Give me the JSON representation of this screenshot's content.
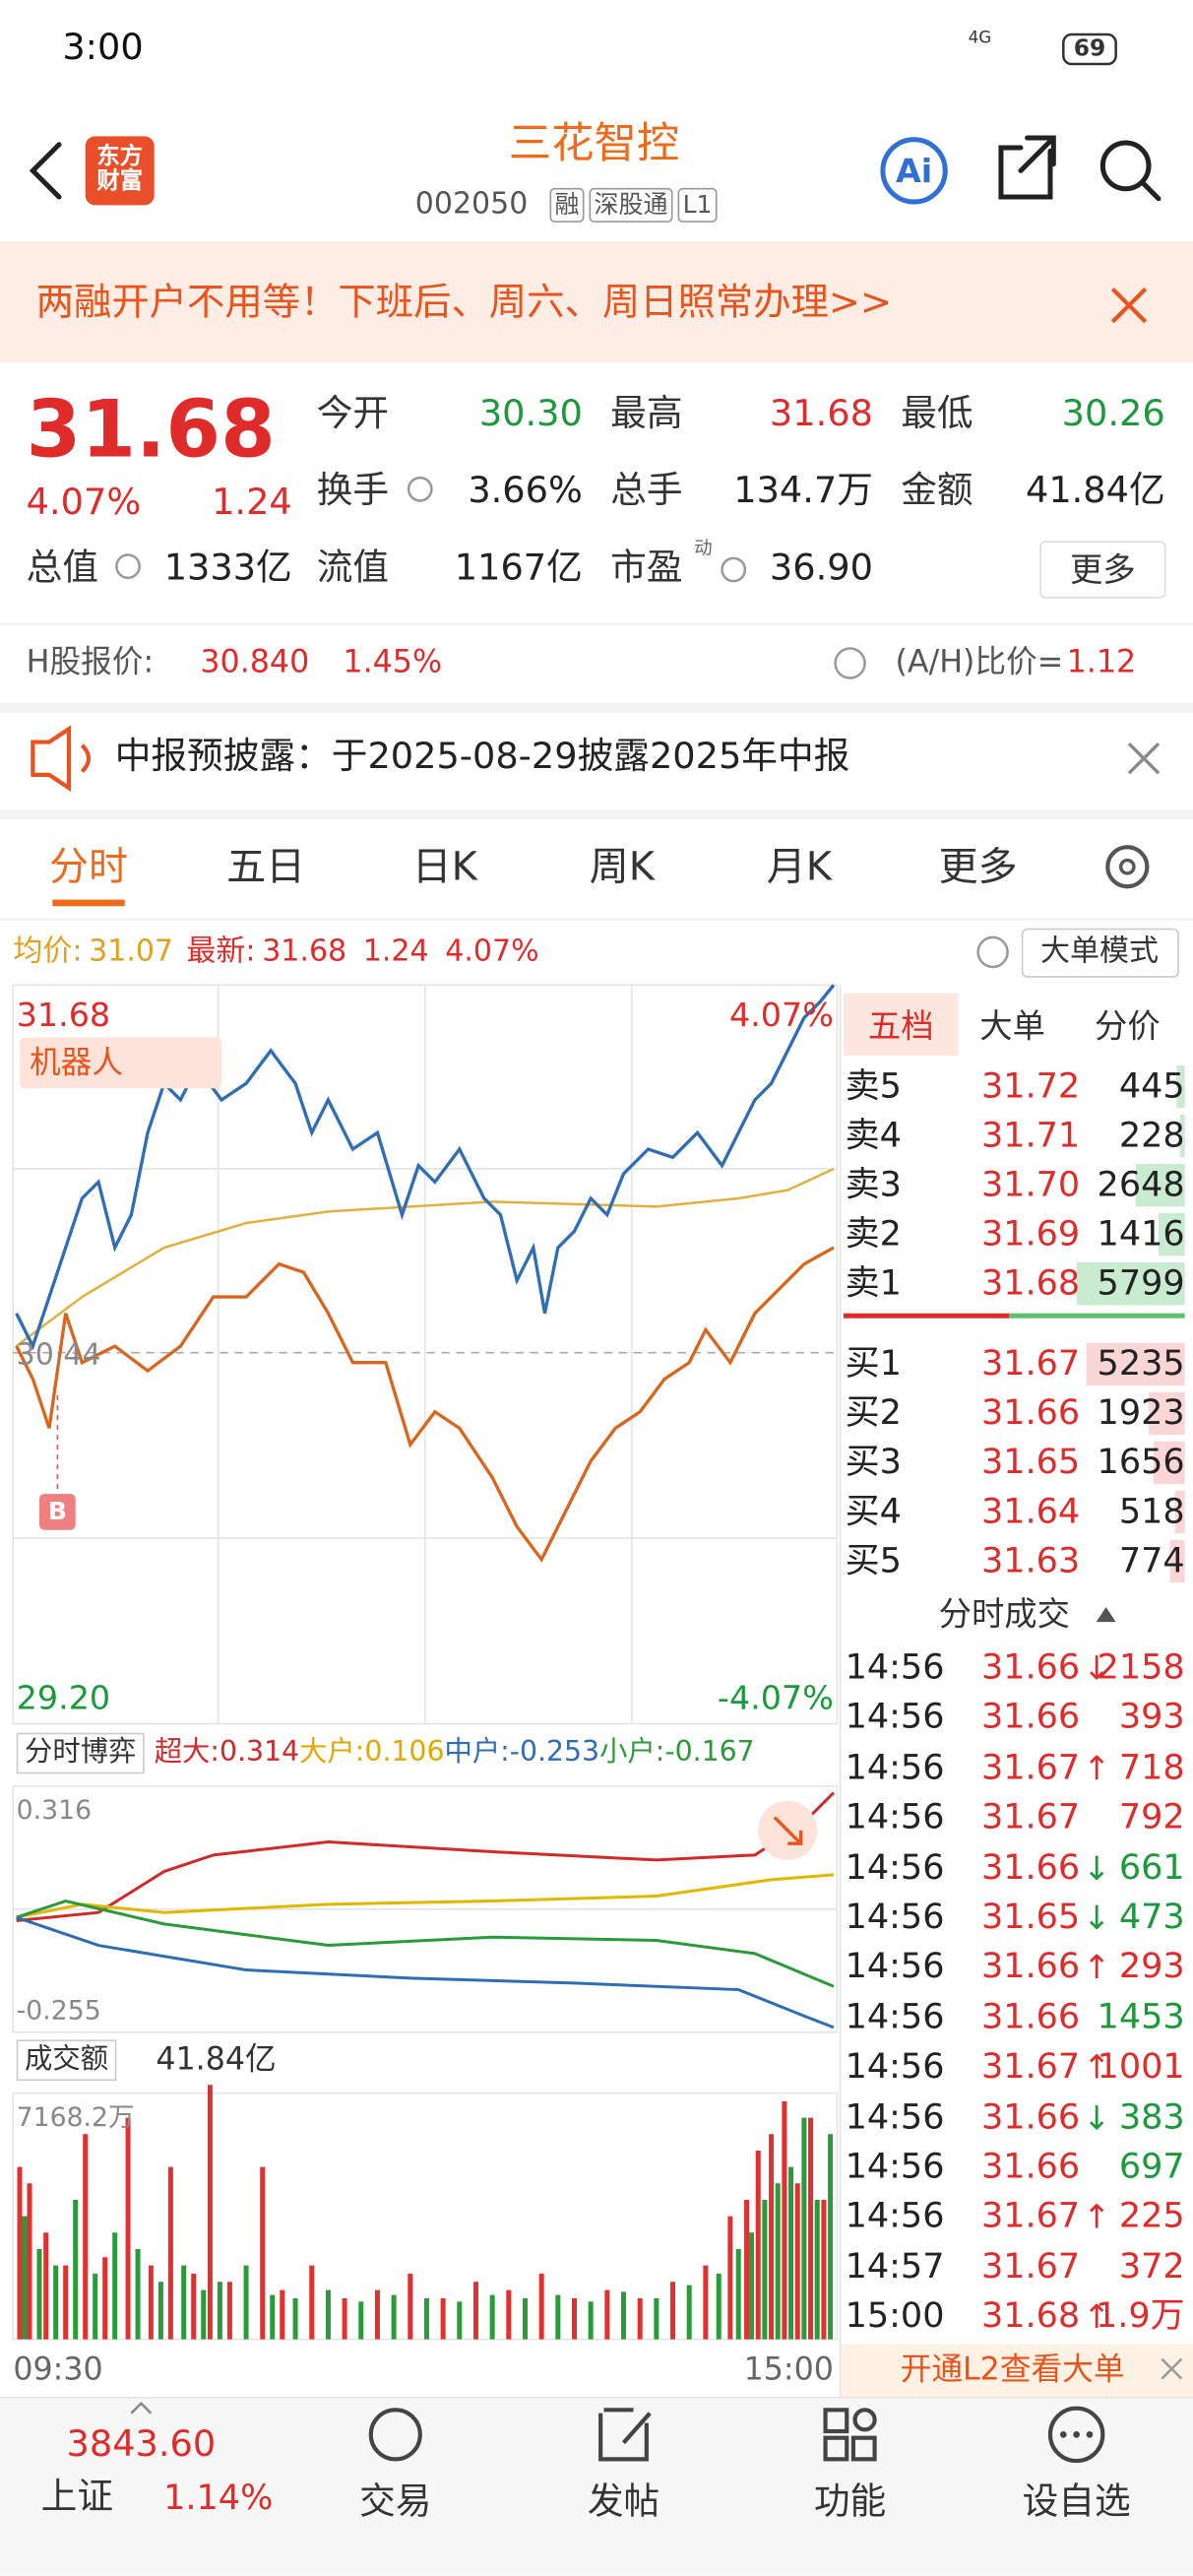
{
  "status": {
    "time": "3:00",
    "network": "4G",
    "battery": "69"
  },
  "header": {
    "logo": "东方财富",
    "title": "三花智控",
    "code": "002050",
    "tags": [
      "融",
      "深股通",
      "L1"
    ],
    "ai": "Ai"
  },
  "banner": {
    "text": "两融开户不用等！下班后、周六、周日照常办理>>"
  },
  "quote": {
    "price": "31.68",
    "pct": "4.07%",
    "change": "1.24",
    "stats": [
      {
        "label": "今开",
        "value": "30.30"
      },
      {
        "label": "最高",
        "value": "31.68"
      },
      {
        "label": "最低",
        "value": "30.26"
      },
      {
        "label": "换手",
        "value": "3.66%"
      },
      {
        "label": "总手",
        "value": "134.7万"
      },
      {
        "label": "金额",
        "value": "41.84亿"
      },
      {
        "label": "总值",
        "value": "1333亿"
      },
      {
        "label": "流值",
        "value": "1167亿"
      },
      {
        "label": "市盈",
        "value": "36.90"
      }
    ],
    "pe_note": "动",
    "more": "更多"
  },
  "hshare": {
    "label": "H股报价:",
    "price": "30.840",
    "pct": "1.45%",
    "ratio_label": "(A/H)比价=",
    "ratio": "1.12"
  },
  "notice": {
    "text": "中报预披露：于2025-08-29披露2025年中报"
  },
  "tabs": {
    "items": [
      "分时",
      "五日",
      "日K",
      "周K",
      "月K",
      "更多"
    ],
    "active": 0
  },
  "chart": {
    "avg_label": "均价:",
    "avg": "31.07",
    "latest_label": "最新:",
    "latest": "31.68",
    "change": "1.24",
    "pct": "4.07%",
    "mode": "大单模式",
    "high": "31.68",
    "high_pct": "4.07%",
    "low": "29.20",
    "low_pct": "-4.07%",
    "ref": "30.44",
    "robot": "机器人",
    "marker": "B"
  },
  "flow": {
    "selector": "分时博弈",
    "items": [
      {
        "label": "超大:",
        "value": "0.314",
        "color": "#d02a2a"
      },
      {
        "label": "大户:",
        "value": "0.106",
        "color": "#e0a800"
      },
      {
        "label": "中户:",
        "value": "-0.253",
        "color": "#2f6db5"
      },
      {
        "label": "小户:",
        "value": "-0.167",
        "color": "#2a9a3a"
      }
    ],
    "top": "0.316",
    "bottom": "-0.255"
  },
  "volume": {
    "selector": "成交额",
    "total": "41.84亿",
    "max": "7168.2万",
    "start": "09:30",
    "end": "15:00"
  },
  "book": {
    "tabs": [
      "五档",
      "大单",
      "分价"
    ],
    "asks": [
      {
        "label": "卖5",
        "price": "31.72",
        "vol": "445"
      },
      {
        "label": "卖4",
        "price": "31.71",
        "vol": "228"
      },
      {
        "label": "卖3",
        "price": "31.70",
        "vol": "2648"
      },
      {
        "label": "卖2",
        "price": "31.69",
        "vol": "1416"
      },
      {
        "label": "卖1",
        "price": "31.68",
        "vol": "5799"
      }
    ],
    "bids": [
      {
        "label": "买1",
        "price": "31.67",
        "vol": "5235"
      },
      {
        "label": "买2",
        "price": "31.66",
        "vol": "1923"
      },
      {
        "label": "买3",
        "price": "31.65",
        "vol": "1656"
      },
      {
        "label": "买4",
        "price": "31.64",
        "vol": "518"
      },
      {
        "label": "买5",
        "price": "31.63",
        "vol": "774"
      }
    ]
  },
  "trades": {
    "title": "分时成交",
    "rows": [
      {
        "time": "14:56",
        "price": "31.66",
        "arrow": "↓",
        "vol": "2158",
        "color": "#e02b2b"
      },
      {
        "time": "14:56",
        "price": "31.66",
        "vol": "393",
        "color": "#e02b2b"
      },
      {
        "time": "14:56",
        "price": "31.67",
        "arrow": "↑",
        "vol": "718",
        "color": "#e02b2b"
      },
      {
        "time": "14:56",
        "price": "31.67",
        "vol": "792",
        "color": "#e02b2b"
      },
      {
        "time": "14:56",
        "price": "31.66",
        "arrow": "↓",
        "vol": "661",
        "color": "#1a9a3a"
      },
      {
        "time": "14:56",
        "price": "31.65",
        "arrow": "↓",
        "vol": "473",
        "color": "#1a9a3a"
      },
      {
        "time": "14:56",
        "price": "31.66",
        "arrow": "↑",
        "vol": "293",
        "color": "#e02b2b"
      },
      {
        "time": "14:56",
        "price": "31.66",
        "vol": "1453",
        "color": "#1a9a3a"
      },
      {
        "time": "14:56",
        "price": "31.67",
        "arrow": "↑",
        "vol": "1001",
        "color": "#e02b2b"
      },
      {
        "time": "14:56",
        "price": "31.66",
        "arrow": "↓",
        "vol": "383",
        "color": "#1a9a3a"
      },
      {
        "time": "14:56",
        "price": "31.66",
        "vol": "697",
        "color": "#1a9a3a"
      },
      {
        "time": "14:56",
        "price": "31.67",
        "arrow": "↑",
        "vol": "225",
        "color": "#e02b2b"
      },
      {
        "time": "14:57",
        "price": "31.67",
        "vol": "372",
        "color": "#e02b2b"
      },
      {
        "time": "15:00",
        "price": "31.68",
        "arrow": "↑",
        "vol": "1.9万",
        "color": "#e02b2b"
      }
    ]
  },
  "promo": "开通L2查看大单",
  "nav": {
    "index_value": "3843.60",
    "index_name": "上证",
    "index_pct": "1.14%",
    "items": [
      "交易",
      "发帖",
      "功能",
      "设自选"
    ]
  }
}
